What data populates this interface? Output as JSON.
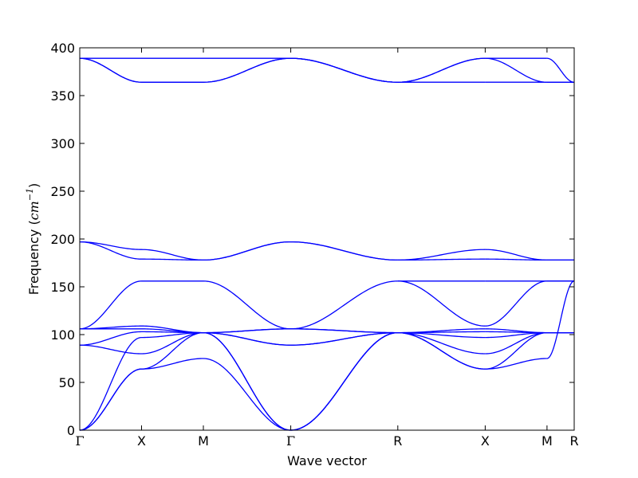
{
  "chart_data": {
    "type": "line",
    "xlabel": "Wave vector",
    "ylabel_text": "Frequency (",
    "ylabel_math": "cm",
    "ylabel_sup": "−1",
    "ylabel_close": ")",
    "ylim": [
      0,
      400
    ],
    "yticks": [
      0,
      50,
      100,
      150,
      200,
      250,
      300,
      350,
      400
    ],
    "grid": false,
    "legend": "none",
    "color": "#0000ff",
    "high_symmetry_points": [
      {
        "label": "Γ",
        "x": 0.0
      },
      {
        "label": "X",
        "x": 0.5
      },
      {
        "label": "M",
        "x": 1.0
      },
      {
        "label": "Γ",
        "x": 1.707
      },
      {
        "label": "R",
        "x": 2.573
      },
      {
        "label": "X",
        "x": 3.28
      },
      {
        "label": "M",
        "x": 3.78
      },
      {
        "label": "R",
        "x": 4.0
      }
    ],
    "xlim": [
      0,
      4.0
    ],
    "segments": [
      {
        "x": [
          0,
          0.5
        ],
        "bands": [
          [
            0,
            64
          ],
          [
            0,
            64
          ],
          [
            0,
            97
          ],
          [
            89,
            80
          ],
          [
            89,
            103
          ],
          [
            106,
            106
          ],
          [
            106,
            109
          ],
          [
            106,
            156
          ],
          [
            197,
            189
          ],
          [
            197,
            179
          ],
          [
            389,
            389
          ],
          [
            389,
            364
          ],
          [
            389,
            364
          ]
        ]
      },
      {
        "x": [
          0.5,
          1.0
        ],
        "bands": [
          [
            64,
            75
          ],
          [
            64,
            102
          ],
          [
            97,
            102
          ],
          [
            80,
            102
          ],
          [
            103,
            102
          ],
          [
            106,
            102
          ],
          [
            109,
            102
          ],
          [
            156,
            156
          ],
          [
            189,
            178
          ],
          [
            179,
            178
          ],
          [
            389,
            389
          ],
          [
            364,
            364
          ],
          [
            364,
            364
          ]
        ]
      },
      {
        "x": [
          1.0,
          1.707
        ],
        "bands": [
          [
            75,
            0
          ],
          [
            102,
            0
          ],
          [
            102,
            0
          ],
          [
            102,
            89
          ],
          [
            102,
            89
          ],
          [
            102,
            106
          ],
          [
            102,
            106
          ],
          [
            156,
            106
          ],
          [
            178,
            197
          ],
          [
            178,
            197
          ],
          [
            389,
            389
          ],
          [
            364,
            389
          ],
          [
            364,
            389
          ]
        ]
      },
      {
        "x": [
          1.707,
          2.573
        ],
        "bands": [
          [
            0,
            102
          ],
          [
            0,
            102
          ],
          [
            0,
            102
          ],
          [
            89,
            102
          ],
          [
            89,
            102
          ],
          [
            106,
            102
          ],
          [
            106,
            102
          ],
          [
            106,
            156
          ],
          [
            197,
            178
          ],
          [
            197,
            178
          ],
          [
            389,
            364
          ],
          [
            389,
            364
          ],
          [
            389,
            364
          ]
        ]
      },
      {
        "x": [
          2.573,
          3.28
        ],
        "bands": [
          [
            102,
            64
          ],
          [
            102,
            64
          ],
          [
            102,
            97
          ],
          [
            102,
            80
          ],
          [
            102,
            103
          ],
          [
            102,
            106
          ],
          [
            156,
            109
          ],
          [
            156,
            156
          ],
          [
            178,
            189
          ],
          [
            178,
            179
          ],
          [
            364,
            389
          ],
          [
            364,
            389
          ],
          [
            364,
            364
          ]
        ]
      },
      {
        "x": [
          3.28,
          3.78
        ],
        "bands": [
          [
            64,
            75
          ],
          [
            64,
            102
          ],
          [
            97,
            102
          ],
          [
            80,
            102
          ],
          [
            103,
            102
          ],
          [
            106,
            102
          ],
          [
            109,
            156
          ],
          [
            156,
            156
          ],
          [
            189,
            178
          ],
          [
            179,
            178
          ],
          [
            389,
            389
          ],
          [
            389,
            364
          ],
          [
            364,
            364
          ]
        ]
      },
      {
        "x": [
          3.78,
          4.0
        ],
        "bands": [
          [
            75,
            156
          ],
          [
            102,
            102
          ],
          [
            102,
            102
          ],
          [
            102,
            102
          ],
          [
            102,
            102
          ],
          [
            102,
            102
          ],
          [
            156,
            156
          ],
          [
            156,
            156
          ],
          [
            178,
            178
          ],
          [
            178,
            178
          ],
          [
            389,
            364
          ],
          [
            364,
            364
          ],
          [
            364,
            364
          ]
        ]
      }
    ]
  }
}
